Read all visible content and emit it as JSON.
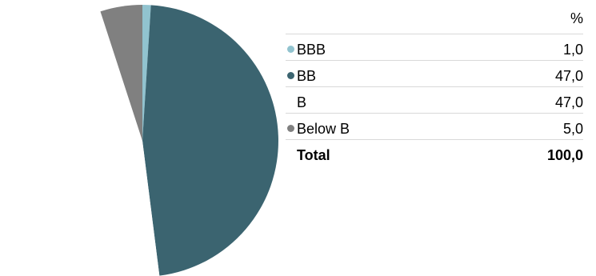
{
  "chart_data": {
    "type": "pie",
    "title": "",
    "unit_header": "%",
    "slices": [
      {
        "label": "BBB",
        "value": 1.0,
        "display": "1,0",
        "color": "#91c3cf",
        "show_marker": true
      },
      {
        "label": "BB",
        "value": 47.0,
        "display": "47,0",
        "color": "#3b6470",
        "show_marker": true
      },
      {
        "label": "B",
        "value": 47.0,
        "display": "47,0",
        "color": "#ffffff",
        "show_marker": false
      },
      {
        "label": "Below B",
        "value": 5.0,
        "display": "5,0",
        "color": "#808080",
        "show_marker": true
      }
    ],
    "total": {
      "label": "Total",
      "display": "100,0"
    },
    "legend_position": "right"
  }
}
